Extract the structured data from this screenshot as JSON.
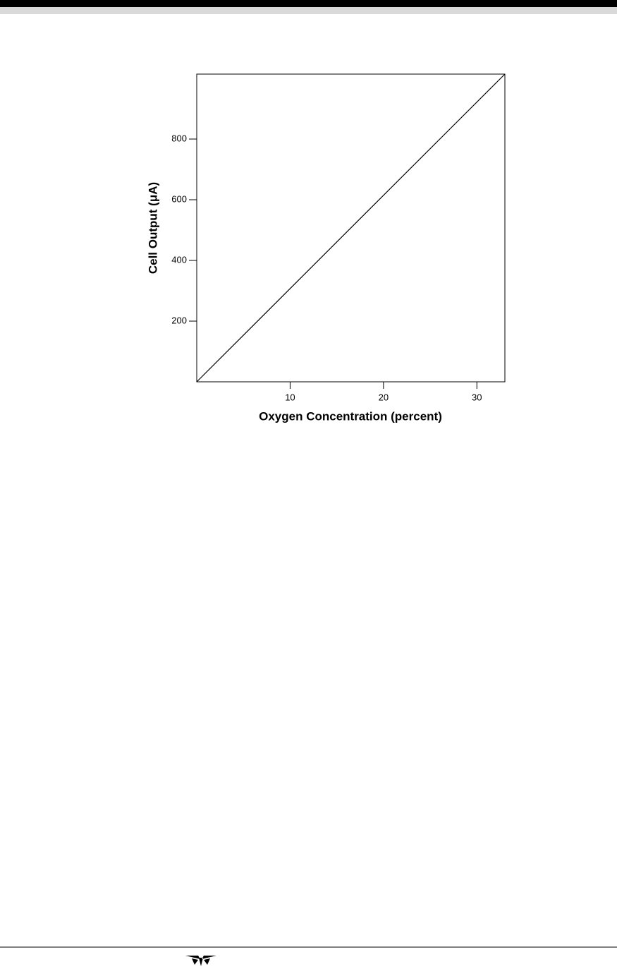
{
  "chart_data": {
    "type": "line",
    "x_label": "Oxygen Concentration (percent)",
    "y_label": "Cell Output (μA)",
    "x": [
      0,
      33
    ],
    "values": [
      0,
      1014
    ],
    "color": "#000000",
    "xlim": [
      0,
      33
    ],
    "xticks": [
      10,
      20,
      30
    ],
    "ylim": [
      0,
      1014
    ],
    "yticks": [
      200,
      400,
      600,
      800
    ],
    "grid": false
  }
}
